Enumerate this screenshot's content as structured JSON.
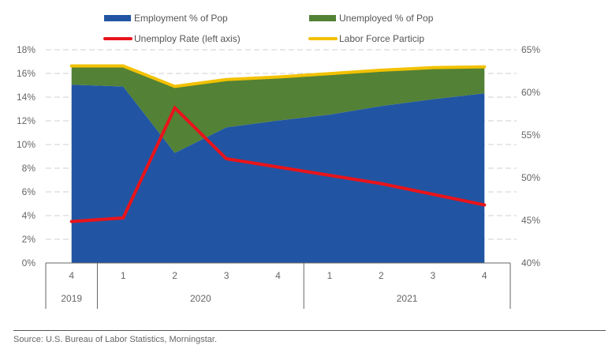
{
  "chart_data": {
    "type": "area",
    "title": "",
    "categories": [
      {
        "quarter": "4",
        "year": "2019"
      },
      {
        "quarter": "1",
        "year": "2020"
      },
      {
        "quarter": "2",
        "year": "2020"
      },
      {
        "quarter": "3",
        "year": "2020"
      },
      {
        "quarter": "4",
        "year": "2020"
      },
      {
        "quarter": "1",
        "year": "2021"
      },
      {
        "quarter": "2",
        "year": "2021"
      },
      {
        "quarter": "3",
        "year": "2021"
      },
      {
        "quarter": "4",
        "year": "2021"
      }
    ],
    "year_groups": [
      "2019",
      "2020",
      "2021"
    ],
    "series": [
      {
        "name": "Employment % of Pop",
        "kind": "stacked-area",
        "axis": "right",
        "color": "#2155A3",
        "values": [
          60.9,
          60.7,
          52.9,
          55.9,
          56.7,
          57.4,
          58.4,
          59.2,
          59.9
        ]
      },
      {
        "name": "Unemployed % of Pop",
        "kind": "stacked-area",
        "axis": "right",
        "color": "#538135",
        "values": [
          2.2,
          2.4,
          7.8,
          5.6,
          5.1,
          4.8,
          4.2,
          3.7,
          3.1
        ]
      },
      {
        "name": "Unemploy Rate (left axis)",
        "kind": "line",
        "axis": "left",
        "color": "#E8141B",
        "values": [
          3.5,
          3.8,
          13.1,
          8.8,
          8.1,
          7.4,
          6.7,
          5.8,
          4.9
        ]
      },
      {
        "name": "Labor Force Particip",
        "kind": "line",
        "axis": "right",
        "color": "#F2C100",
        "values": [
          63.1,
          63.1,
          60.7,
          61.5,
          61.8,
          62.2,
          62.6,
          62.9,
          63.0
        ]
      }
    ],
    "legend": {
      "placement": "top",
      "items": [
        "Employment % of Pop",
        "Unemployed % of Pop",
        "Unemploy Rate (left axis)",
        "Labor Force Particip"
      ]
    },
    "left_axis": {
      "min": 0,
      "max": 18,
      "step": 2,
      "ticks": [
        "0%",
        "2%",
        "4%",
        "6%",
        "8%",
        "10%",
        "12%",
        "14%",
        "16%",
        "18%"
      ]
    },
    "right_axis": {
      "min": 40,
      "max": 65,
      "step": 5,
      "ticks": [
        "40%",
        "45%",
        "50%",
        "55%",
        "60%",
        "65%"
      ]
    },
    "grid": true,
    "xlabel": "",
    "ylabel": ""
  },
  "footer": {
    "source": "Source: U.S. Bureau of Labor Statistics, Morningstar."
  }
}
